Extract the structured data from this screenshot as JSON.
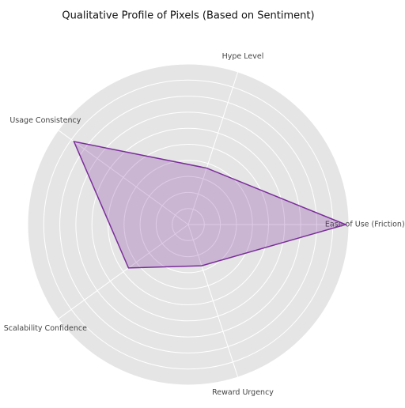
{
  "chart_data": {
    "type": "radar",
    "title": "Qualitative Profile of Pixels (Based on Sentiment)",
    "categories": [
      "Ease of Use (Friction)",
      "Hype Level",
      "Usage Consistency",
      "Scalability Confidence",
      "Reward Urgency"
    ],
    "values": [
      9.8,
      3.7,
      8.8,
      4.6,
      2.7
    ],
    "color": "#7b2d9b",
    "rlim": [
      0,
      10
    ],
    "rticks": [
      1,
      2,
      3,
      4,
      5,
      6,
      7,
      8,
      9,
      10
    ],
    "grid": true
  }
}
